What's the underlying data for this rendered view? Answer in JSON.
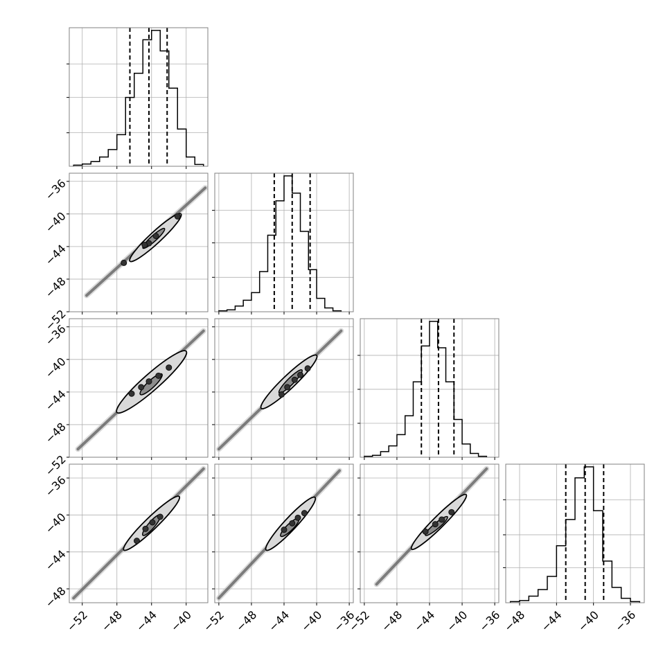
{
  "chart_data": {
    "type": "corner",
    "dimensions": 4,
    "colors": {
      "line": "#000000",
      "grid": "#b0b0b0",
      "contour_fill_inner": "#8c8c8c",
      "contour_fill_outer": "#d9d9d9"
    },
    "grid": true,
    "histograms": [
      {
        "dim": 0,
        "xlim": [
          -53.5,
          -37.5
        ],
        "bin_edges": [
          -53,
          -52,
          -51,
          -50,
          -49,
          -48,
          -47,
          -46,
          -45,
          -44,
          -43,
          -42,
          -41,
          -40,
          -39,
          -38
        ],
        "counts": [
          0.6,
          1.2,
          2.5,
          5,
          9,
          17,
          37,
          50,
          68,
          73,
          62,
          42,
          20,
          5,
          1
        ],
        "quantiles": [
          -46.5,
          -44.3,
          -42.2
        ]
      },
      {
        "dim": 1,
        "xlim": [
          -52.5,
          -35.5
        ],
        "bin_edges": [
          -52,
          -51,
          -50,
          -49,
          -48,
          -47,
          -46,
          -45,
          -44,
          -43,
          -42,
          -41,
          -40,
          -39,
          -38,
          -37
        ],
        "counts": [
          0.5,
          1,
          3,
          6,
          10,
          21,
          40,
          58,
          71,
          62,
          42,
          22,
          7,
          2,
          0.5
        ],
        "quantiles": [
          -45.2,
          -43.0,
          -40.8
        ]
      },
      {
        "dim": 2,
        "xlim": [
          -52.5,
          -35.5
        ],
        "bin_edges": [
          -52,
          -51,
          -50,
          -49,
          -48,
          -47,
          -46,
          -45,
          -44,
          -43,
          -42,
          -41,
          -40,
          -39,
          -38,
          -37
        ],
        "counts": [
          0.5,
          1,
          3,
          6,
          12,
          22,
          40,
          59,
          72,
          58,
          40,
          20,
          7,
          2,
          0.5
        ],
        "quantiles": [
          -45.0,
          -42.9,
          -41.0
        ]
      },
      {
        "dim": 3,
        "xlim": [
          -49.5,
          -34.5
        ],
        "bin_edges": [
          -49,
          -48,
          -47,
          -46,
          -45,
          -44,
          -43,
          -42,
          -41,
          -40,
          -39,
          -38,
          -37,
          -36,
          -35
        ],
        "counts": [
          0.5,
          1,
          3,
          6,
          12,
          26,
          38,
          57,
          62,
          42,
          19,
          7,
          2,
          0.5
        ],
        "quantiles": [
          -43.0,
          -40.9,
          -38.9
        ]
      }
    ],
    "pairs": [
      {
        "row": 1,
        "col": 0,
        "xlim": [
          -53.5,
          -37.5
        ],
        "ylim": [
          -52,
          -35
        ],
        "tail": [
          [
            -51.5,
            -50.0
          ],
          [
            -37.8,
            -36.8
          ]
        ],
        "outer": [
          [
            -46.5,
            -45.8
          ],
          [
            -40.6,
            -40.0
          ]
        ],
        "inner": [
          [
            -45.0,
            -44.2
          ],
          [
            -42.5,
            -41.8
          ]
        ],
        "points": [
          [
            -44.3,
            -43.6
          ],
          [
            -43.5,
            -42.7
          ],
          [
            -44.8,
            -43.8
          ],
          [
            -41.0,
            -40.3
          ],
          [
            -47.2,
            -46.0
          ]
        ],
        "widths": [
          0.7,
          0.35
        ]
      },
      {
        "row": 2,
        "col": 0,
        "xlim": [
          -53.5,
          -37.5
        ],
        "ylim": [
          -52,
          -35
        ],
        "tail": [
          [
            -52.5,
            -51.0
          ],
          [
            -38.0,
            -36.5
          ]
        ],
        "outer": [
          [
            -48.0,
            -46.5
          ],
          [
            -40.0,
            -39.0
          ]
        ],
        "inner": [
          [
            -45.3,
            -44.3
          ],
          [
            -42.8,
            -41.8
          ]
        ],
        "points": [
          [
            -46.3,
            -44.2
          ],
          [
            -45.2,
            -43.4
          ],
          [
            -44.3,
            -42.7
          ],
          [
            -43.2,
            -42.0
          ],
          [
            -42.0,
            -41.0
          ]
        ],
        "widths": [
          1.0,
          0.45
        ]
      },
      {
        "row": 2,
        "col": 1,
        "xlim": [
          -52.5,
          -35.5
        ],
        "ylim": [
          -52,
          -35
        ],
        "tail": [
          [
            -52.0,
            -51.0
          ],
          [
            -37.0,
            -36.5
          ]
        ],
        "outer": [
          [
            -46.8,
            -46.0
          ],
          [
            -40.0,
            -39.5
          ]
        ],
        "inner": [
          [
            -44.6,
            -44.1
          ],
          [
            -41.8,
            -41.3
          ]
        ],
        "points": [
          [
            -44.3,
            -44.3
          ],
          [
            -43.6,
            -43.4
          ],
          [
            -42.7,
            -42.5
          ],
          [
            -42.0,
            -41.9
          ],
          [
            -41.1,
            -41.1
          ]
        ],
        "widths": [
          0.8,
          0.4
        ]
      },
      {
        "row": 3,
        "col": 0,
        "xlim": [
          -53.5,
          -37.5
        ],
        "ylim": [
          -49.5,
          -34.5
        ],
        "tail": [
          [
            -53.0,
            -49.0
          ],
          [
            -38.0,
            -35.0
          ]
        ],
        "outer": [
          [
            -47.2,
            -43.8
          ],
          [
            -40.8,
            -38.0
          ]
        ],
        "inner": [
          [
            -45.0,
            -42.2
          ],
          [
            -43.0,
            -40.0
          ]
        ],
        "points": [
          [
            -45.7,
            -42.8
          ],
          [
            -44.7,
            -41.5
          ],
          [
            -43.9,
            -40.8
          ],
          [
            -43.0,
            -40.2
          ]
        ],
        "widths": [
          0.75,
          0.4
        ]
      },
      {
        "row": 3,
        "col": 1,
        "xlim": [
          -52.5,
          -35.5
        ],
        "ylim": [
          -49.5,
          -34.5
        ],
        "tail": [
          [
            -52.0,
            -49.0
          ],
          [
            -37.2,
            -35.2
          ]
        ],
        "outer": [
          [
            -46.2,
            -43.8
          ],
          [
            -40.2,
            -38.1
          ]
        ],
        "inner": [
          [
            -44.4,
            -42.3
          ],
          [
            -42.2,
            -40.4
          ]
        ],
        "points": [
          [
            -44.0,
            -41.6
          ],
          [
            -43.0,
            -40.9
          ],
          [
            -42.3,
            -40.3
          ],
          [
            -41.5,
            -39.8
          ]
        ],
        "widths": [
          0.75,
          0.4
        ]
      },
      {
        "row": 3,
        "col": 2,
        "xlim": [
          -52.5,
          -35.5
        ],
        "ylim": [
          -49.5,
          -34.5
        ],
        "tail": [
          [
            -50.5,
            -47.5
          ],
          [
            -37.0,
            -35.0
          ]
        ],
        "outer": [
          [
            -46.2,
            -43.7
          ],
          [
            -39.5,
            -37.8
          ]
        ],
        "inner": [
          [
            -44.5,
            -42.2
          ],
          [
            -41.8,
            -40.2
          ]
        ],
        "points": [
          [
            -44.5,
            -41.8
          ],
          [
            -43.3,
            -41.0
          ],
          [
            -42.5,
            -40.5
          ],
          [
            -41.3,
            -39.7
          ]
        ],
        "widths": [
          0.7,
          0.35
        ]
      }
    ],
    "x_axes": [
      {
        "col": 0,
        "ticks": [
          -52,
          -48,
          -44,
          -40
        ],
        "labels": [
          "−52",
          "−48",
          "−44",
          "−40"
        ]
      },
      {
        "col": 1,
        "ticks": [
          -52,
          -48,
          -44,
          -40,
          -36
        ],
        "labels": [
          "−52",
          "−48",
          "−44",
          "−40",
          "−36"
        ]
      },
      {
        "col": 2,
        "ticks": [
          -52,
          -48,
          -44,
          -40,
          -36
        ],
        "labels": [
          "−52",
          "−48",
          "−44",
          "−40",
          "−36"
        ]
      },
      {
        "col": 3,
        "ticks": [
          -48,
          -44,
          -40,
          -36
        ],
        "labels": [
          "−48",
          "−44",
          "−40",
          "−36"
        ]
      }
    ],
    "y_axes": [
      {
        "row": 1,
        "ticks": [
          -36,
          -40,
          -44,
          -48,
          -52
        ],
        "labels": [
          "−36",
          "−40",
          "−44",
          "−48",
          "−52"
        ]
      },
      {
        "row": 2,
        "ticks": [
          -36,
          -40,
          -44,
          -48,
          -52
        ],
        "labels": [
          "−36",
          "−40",
          "−44",
          "−48",
          "−52"
        ]
      },
      {
        "row": 3,
        "ticks": [
          -36,
          -40,
          -44,
          -48
        ],
        "labels": [
          "−36",
          "−40",
          "−44",
          "−48"
        ]
      }
    ]
  }
}
